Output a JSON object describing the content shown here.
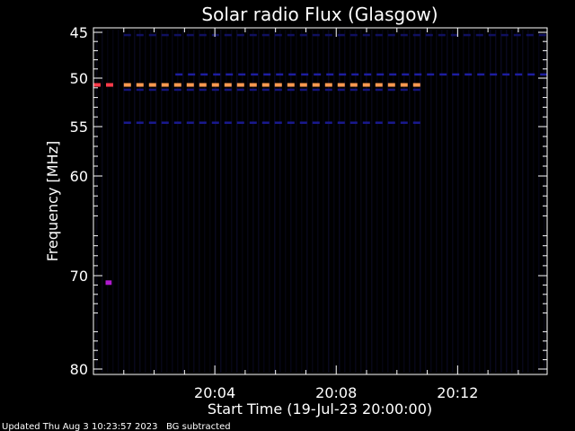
{
  "chart_data": {
    "type": "heatmap",
    "title": "Solar radio Flux (Glasgow)",
    "xlabel": "Start Time (19-Jul-23 20:00:00)",
    "ylabel": "Frequency [MHz]",
    "xlim_minutes": [
      0,
      14.95
    ],
    "ylim": [
      45,
      80
    ],
    "y_ticks": [
      {
        "value": 45,
        "label": "45"
      },
      {
        "value": 50,
        "label": "50"
      },
      {
        "value": 55,
        "label": "55"
      },
      {
        "value": 60,
        "label": "60"
      },
      {
        "value": 70,
        "label": "70"
      },
      {
        "value": 80,
        "label": "80"
      }
    ],
    "x_ticks": [
      {
        "minute": 4,
        "label": "20:04"
      },
      {
        "minute": 8,
        "label": "20:08"
      },
      {
        "minute": 12,
        "label": "20:12"
      }
    ],
    "background_color": "#000000",
    "emission_bands": [
      {
        "freq_mhz": 50.7,
        "start_min": 1.0,
        "end_min": 10.8,
        "color": "#ff9a50"
      },
      {
        "freq_mhz": 50.7,
        "start_min": 0.0,
        "end_min": 0.7,
        "color": "#ff3b4a"
      },
      {
        "freq_mhz": 49.6,
        "start_min": 2.7,
        "end_min": 14.9,
        "color": "#1d1da0"
      },
      {
        "freq_mhz": 51.2,
        "start_min": 1.0,
        "end_min": 10.8,
        "color": "#14147a"
      },
      {
        "freq_mhz": 54.6,
        "start_min": 1.0,
        "end_min": 10.8,
        "color": "#1a1a90"
      },
      {
        "freq_mhz": 45.3,
        "start_min": 1.0,
        "end_min": 14.9,
        "color": "#101060"
      },
      {
        "freq_mhz": 70.7,
        "start_min": 0.4,
        "end_min": 0.6,
        "color": "#b01ad0"
      }
    ],
    "footer_left": "Updated Thu Aug  3 10:23:57 2023",
    "footer_right": "BG subtracted"
  }
}
